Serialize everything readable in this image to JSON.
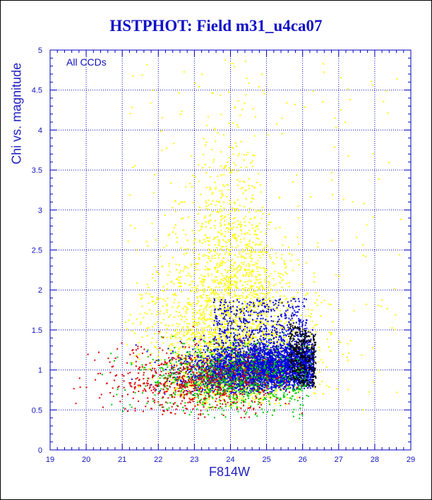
{
  "title": "HSTPHOT: Field m31_u4ca07",
  "chart_data": {
    "type": "scatter",
    "title": "HSTPHOT: Field m31_u4ca07",
    "xlabel": "F814W",
    "ylabel": "Chi vs. magnitude",
    "annotation": "All CCDs",
    "xlim": [
      19,
      29
    ],
    "ylim": [
      0,
      5
    ],
    "xticks": [
      "19",
      "20",
      "21",
      "22",
      "23",
      "24",
      "25",
      "26",
      "27",
      "28",
      "29"
    ],
    "yticks": [
      "0",
      "0.5",
      "1",
      "1.5",
      "2",
      "2.5",
      "3",
      "3.5",
      "4",
      "4.5",
      "5"
    ],
    "grid": true,
    "series": [
      {
        "color": "#ffff00",
        "description_points": "broad plume",
        "center": [
          24.0,
          2.2
        ],
        "x_range": [
          21.0,
          28.8
        ],
        "y_range": [
          0.4,
          5.0
        ]
      },
      {
        "color": "#0000dd",
        "description_points": "dense locus",
        "center": [
          24.8,
          0.9
        ],
        "x_range": [
          19.6,
          26.3
        ],
        "y_range": [
          0.3,
          2.0
        ]
      },
      {
        "color": "#00cc00",
        "description_points": "scattered",
        "center": [
          24.0,
          0.9
        ],
        "x_range": [
          20.3,
          26.2
        ],
        "y_range": [
          0.4,
          1.8
        ]
      },
      {
        "color": "#dd0000",
        "description_points": "scattered",
        "center": [
          23.0,
          0.85
        ],
        "x_range": [
          19.5,
          26.0
        ],
        "y_range": [
          0.4,
          1.6
        ]
      },
      {
        "color": "#000000",
        "description_points": "faint edge",
        "center": [
          26.1,
          1.05
        ],
        "x_range": [
          25.2,
          26.4
        ],
        "y_range": [
          0.7,
          1.6
        ]
      }
    ]
  }
}
